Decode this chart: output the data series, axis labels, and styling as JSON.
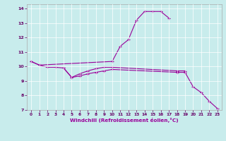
{
  "xlabel": "Windchill (Refroidissement éolien,°C)",
  "background_color": "#c8ecec",
  "line_color": "#990099",
  "xlim": [
    -0.5,
    23.5
  ],
  "ylim": [
    7,
    14.3
  ],
  "xticks": [
    0,
    1,
    2,
    3,
    4,
    5,
    6,
    7,
    8,
    9,
    10,
    11,
    12,
    13,
    14,
    15,
    16,
    17,
    18,
    19,
    20,
    21,
    22,
    23
  ],
  "yticks": [
    7,
    8,
    9,
    10,
    11,
    12,
    13,
    14
  ],
  "line1_x": [
    0,
    1,
    10,
    11,
    12,
    13,
    14,
    15,
    16,
    17
  ],
  "line1_y": [
    10.35,
    10.1,
    10.35,
    11.4,
    11.85,
    13.2,
    13.8,
    13.8,
    13.8,
    13.35
  ],
  "line2_x": [
    0,
    1,
    2,
    3,
    4,
    5,
    6,
    7,
    8,
    9,
    10,
    18,
    19
  ],
  "line2_y": [
    10.35,
    10.1,
    9.95,
    9.95,
    9.9,
    9.25,
    9.5,
    9.7,
    9.85,
    9.95,
    9.95,
    9.7,
    9.7
  ],
  "line3_x": [
    4,
    5,
    6,
    7,
    8,
    9,
    10,
    18,
    19,
    20,
    21,
    22,
    23
  ],
  "line3_y": [
    9.9,
    9.25,
    9.35,
    9.5,
    9.6,
    9.7,
    9.8,
    9.6,
    9.6,
    8.6,
    8.2,
    7.6,
    7.1
  ]
}
